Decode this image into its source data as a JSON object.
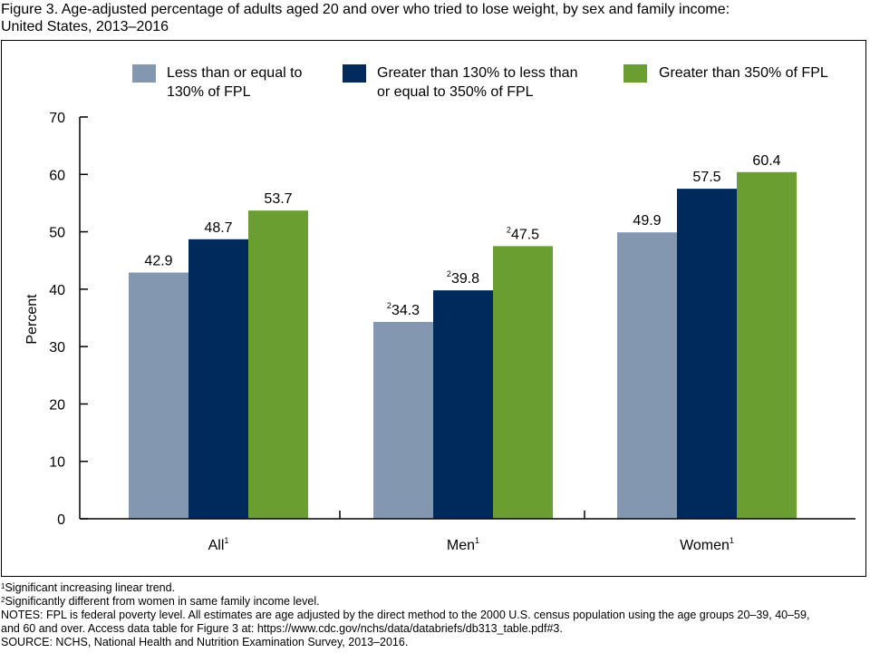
{
  "title": "Figure 3. Age-adjusted percentage of adults aged 20 and over who tried to lose weight, by sex and family income:\nUnited States, 2013–2016",
  "colors": {
    "low_income": "#8497b0",
    "mid_income": "#002a5c",
    "high_income": "#6b9e30"
  },
  "chart_data": {
    "type": "bar",
    "ylabel": "Percent",
    "ylim": [
      0,
      70
    ],
    "yticks": [
      "0",
      "10",
      "20",
      "30",
      "40",
      "50",
      "60",
      "70"
    ],
    "categories": [
      "All",
      "Men",
      "Women"
    ],
    "category_superscripts": [
      "1",
      "1",
      "1"
    ],
    "legend_position": "top",
    "series": [
      {
        "name": "Less than or equal to\n130% of FPL",
        "values": [
          42.9,
          34.3,
          49.9
        ],
        "labels": [
          "42.9",
          "34.3",
          "49.9"
        ],
        "label_superscripts": [
          "",
          "2",
          ""
        ]
      },
      {
        "name": "Greater than 130% to less than\n or equal to 350% of FPL",
        "values": [
          48.7,
          39.8,
          57.5
        ],
        "labels": [
          "48.7",
          "39.8",
          "57.5"
        ],
        "label_superscripts": [
          "",
          "2",
          ""
        ]
      },
      {
        "name": "Greater than 350% of FPL",
        "values": [
          53.7,
          47.5,
          60.4
        ],
        "labels": [
          "53.7",
          "47.5",
          "60.4"
        ],
        "label_superscripts": [
          "",
          "2",
          ""
        ]
      }
    ]
  },
  "footnotes": {
    "fn1_marker": "1",
    "fn1_text": "Significant increasing linear trend.",
    "fn2_marker": "2",
    "fn2_text": "Significantly different from women in same family income level.",
    "notes_line1": "NOTES: FPL is federal poverty level. All estimates are age adjusted by the direct method to the 2000 U.S. census population using the age groups 20–39, 40–59,",
    "notes_line2": "and 60 and over. Access data table for Figure 3 at: https://www.cdc.gov/nchs/data/databriefs/db313_table.pdf#3.",
    "source": "SOURCE: NCHS, National Health and Nutrition Examination Survey, 2013–2016."
  }
}
